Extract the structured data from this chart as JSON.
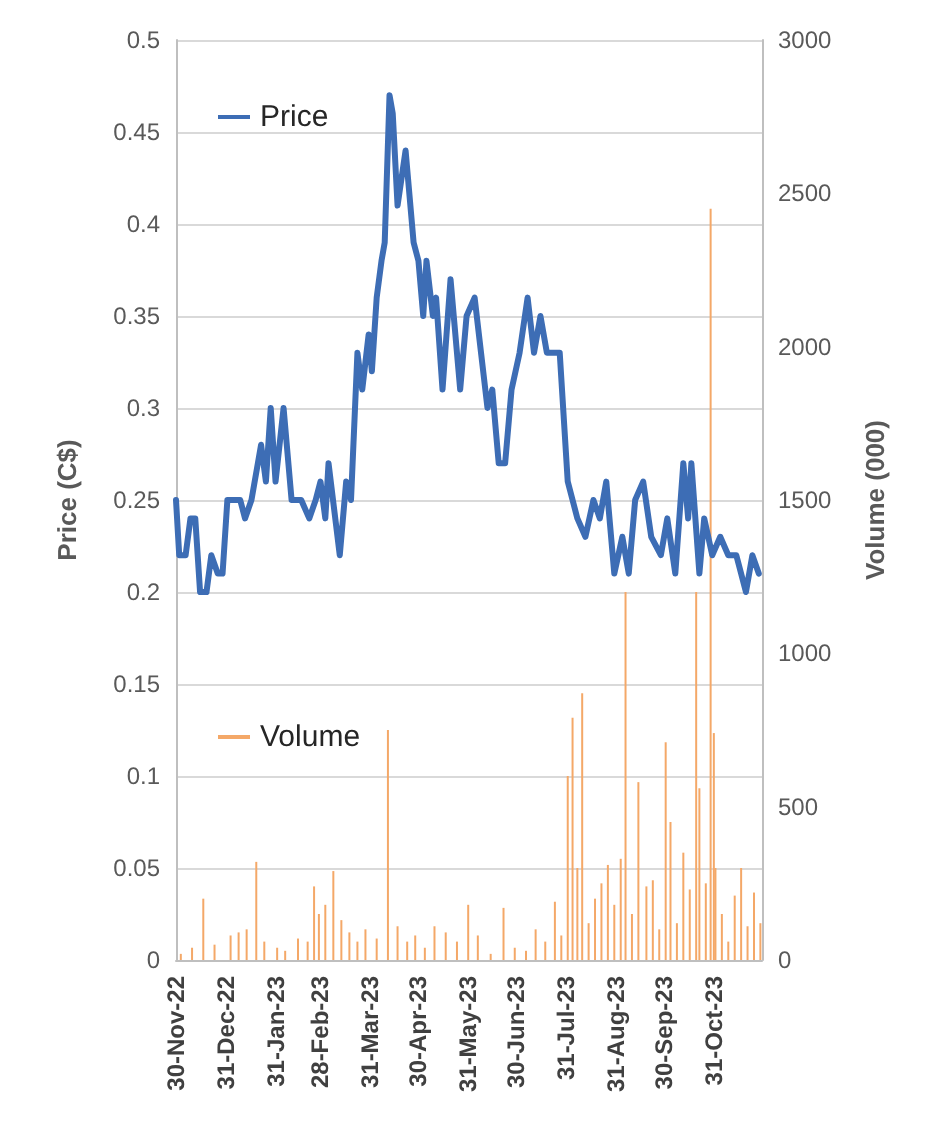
{
  "chart_data": {
    "type": "line",
    "xlabel": null,
    "ylabel": "Price (C$)",
    "y2label": "Volume (000)",
    "xlim": [
      "2022-11-30",
      "2023-11-30"
    ],
    "xticks": [
      {
        "value": "2022-11-30",
        "label": "30-Nov-22"
      },
      {
        "value": "2022-12-31",
        "label": "31-Dec-22"
      },
      {
        "value": "2023-01-31",
        "label": "31-Jan-23"
      },
      {
        "value": "2023-02-28",
        "label": "28-Feb-23"
      },
      {
        "value": "2023-03-31",
        "label": "31-Mar-23"
      },
      {
        "value": "2023-04-30",
        "label": "30-Apr-23"
      },
      {
        "value": "2023-05-31",
        "label": "31-May-23"
      },
      {
        "value": "2023-06-30",
        "label": "30-Jun-23"
      },
      {
        "value": "2023-07-31",
        "label": "31-Jul-23"
      },
      {
        "value": "2023-08-31",
        "label": "31-Aug-23"
      },
      {
        "value": "2023-09-30",
        "label": "30-Sep-23"
      },
      {
        "value": "2023-10-31",
        "label": "31-Oct-23"
      }
    ],
    "ylim": [
      0,
      0.5
    ],
    "yticks": [
      0,
      0.05,
      0.1,
      0.15,
      0.2,
      0.25,
      0.3,
      0.35,
      0.4,
      0.45,
      0.5
    ],
    "y2lim": [
      0,
      3000
    ],
    "y2ticks": [
      0,
      500,
      1000,
      1500,
      2000,
      2500,
      3000
    ],
    "grid": "y",
    "legend": "left",
    "marker": "none",
    "line_style": "solid",
    "series": [
      {
        "name": "Price",
        "color": "#3d6db5",
        "x": [
          "2022-11-30",
          "2022-12-02",
          "2022-12-06",
          "2022-12-09",
          "2022-12-12",
          "2022-12-15",
          "2022-12-19",
          "2022-12-22",
          "2022-12-26",
          "2022-12-29",
          "2023-01-01",
          "2023-01-09",
          "2023-01-12",
          "2023-01-16",
          "2023-01-20",
          "2023-01-22",
          "2023-01-25",
          "2023-01-28",
          "2023-01-31",
          "2023-02-05",
          "2023-02-10",
          "2023-02-16",
          "2023-02-21",
          "2023-02-25",
          "2023-02-28",
          "2023-03-03",
          "2023-03-05",
          "2023-03-12",
          "2023-03-16",
          "2023-03-19",
          "2023-03-23",
          "2023-03-26",
          "2023-03-30",
          "2023-04-01",
          "2023-04-04",
          "2023-04-07",
          "2023-04-09",
          "2023-04-12",
          "2023-04-14",
          "2023-04-17",
          "2023-04-22",
          "2023-04-27",
          "2023-04-30",
          "2023-05-03",
          "2023-05-05",
          "2023-05-09",
          "2023-05-11",
          "2023-05-15",
          "2023-05-20",
          "2023-05-26",
          "2023-05-30",
          "2023-06-04",
          "2023-06-08",
          "2023-06-12",
          "2023-06-15",
          "2023-06-19",
          "2023-06-23",
          "2023-06-27",
          "2023-07-02",
          "2023-07-07",
          "2023-07-11",
          "2023-07-15",
          "2023-07-19",
          "2023-07-27",
          "2023-08-01",
          "2023-08-07",
          "2023-08-12",
          "2023-08-17",
          "2023-08-21",
          "2023-08-25",
          "2023-08-30",
          "2023-09-04",
          "2023-09-08",
          "2023-09-12",
          "2023-09-17",
          "2023-09-22",
          "2023-09-28",
          "2023-10-02",
          "2023-10-07",
          "2023-10-12",
          "2023-10-15",
          "2023-10-17",
          "2023-10-22",
          "2023-10-25",
          "2023-10-30",
          "2023-11-04",
          "2023-11-09",
          "2023-11-14",
          "2023-11-20",
          "2023-11-24",
          "2023-11-28"
        ],
        "values": [
          0.25,
          0.22,
          0.22,
          0.24,
          0.24,
          0.2,
          0.2,
          0.22,
          0.21,
          0.21,
          0.25,
          0.25,
          0.24,
          0.25,
          0.27,
          0.28,
          0.26,
          0.3,
          0.26,
          0.3,
          0.25,
          0.25,
          0.24,
          0.25,
          0.26,
          0.24,
          0.27,
          0.22,
          0.26,
          0.25,
          0.33,
          0.31,
          0.34,
          0.32,
          0.36,
          0.38,
          0.39,
          0.47,
          0.46,
          0.41,
          0.44,
          0.39,
          0.38,
          0.35,
          0.38,
          0.35,
          0.36,
          0.31,
          0.37,
          0.31,
          0.35,
          0.36,
          0.33,
          0.3,
          0.31,
          0.27,
          0.27,
          0.31,
          0.33,
          0.36,
          0.33,
          0.35,
          0.33,
          0.33,
          0.26,
          0.24,
          0.23,
          0.25,
          0.24,
          0.26,
          0.21,
          0.23,
          0.21,
          0.25,
          0.26,
          0.23,
          0.22,
          0.24,
          0.21,
          0.27,
          0.24,
          0.27,
          0.21,
          0.24,
          0.22,
          0.23,
          0.22,
          0.22,
          0.2,
          0.22,
          0.21
        ]
      },
      {
        "name": "Volume",
        "type": "bar",
        "axis": "y2",
        "color": "#f4a868",
        "x": [
          "2022-12-03",
          "2022-12-10",
          "2022-12-17",
          "2022-12-24",
          "2023-01-03",
          "2023-01-08",
          "2023-01-13",
          "2023-01-19",
          "2023-01-24",
          "2023-02-01",
          "2023-02-06",
          "2023-02-14",
          "2023-02-20",
          "2023-02-24",
          "2023-02-27",
          "2023-03-03",
          "2023-03-08",
          "2023-03-13",
          "2023-03-18",
          "2023-03-23",
          "2023-03-28",
          "2023-04-04",
          "2023-04-11",
          "2023-04-17",
          "2023-04-23",
          "2023-04-28",
          "2023-05-04",
          "2023-05-10",
          "2023-05-17",
          "2023-05-24",
          "2023-05-31",
          "2023-06-06",
          "2023-06-14",
          "2023-06-22",
          "2023-06-29",
          "2023-07-06",
          "2023-07-12",
          "2023-07-18",
          "2023-07-24",
          "2023-07-28",
          "2023-08-01",
          "2023-08-04",
          "2023-08-07",
          "2023-08-10",
          "2023-08-14",
          "2023-08-18",
          "2023-08-22",
          "2023-08-26",
          "2023-08-30",
          "2023-09-03",
          "2023-09-06",
          "2023-09-10",
          "2023-09-14",
          "2023-09-19",
          "2023-09-23",
          "2023-09-27",
          "2023-10-01",
          "2023-10-04",
          "2023-10-08",
          "2023-10-12",
          "2023-10-16",
          "2023-10-20",
          "2023-10-22",
          "2023-10-26",
          "2023-10-29",
          "2023-10-31",
          "2023-11-01",
          "2023-11-05",
          "2023-11-09",
          "2023-11-13",
          "2023-11-17",
          "2023-11-21",
          "2023-11-25",
          "2023-11-29"
        ],
        "values": [
          20,
          40,
          200,
          50,
          80,
          90,
          100,
          320,
          60,
          40,
          30,
          70,
          60,
          240,
          150,
          180,
          290,
          130,
          90,
          60,
          100,
          70,
          750,
          110,
          60,
          80,
          40,
          110,
          90,
          60,
          180,
          80,
          20,
          170,
          40,
          30,
          100,
          60,
          190,
          80,
          600,
          790,
          300,
          870,
          120,
          200,
          250,
          310,
          180,
          330,
          1200,
          150,
          580,
          240,
          260,
          100,
          710,
          450,
          120,
          350,
          230,
          1200,
          560,
          250,
          2450,
          740,
          300,
          150,
          60,
          210,
          300,
          110,
          220,
          120
        ]
      }
    ]
  }
}
